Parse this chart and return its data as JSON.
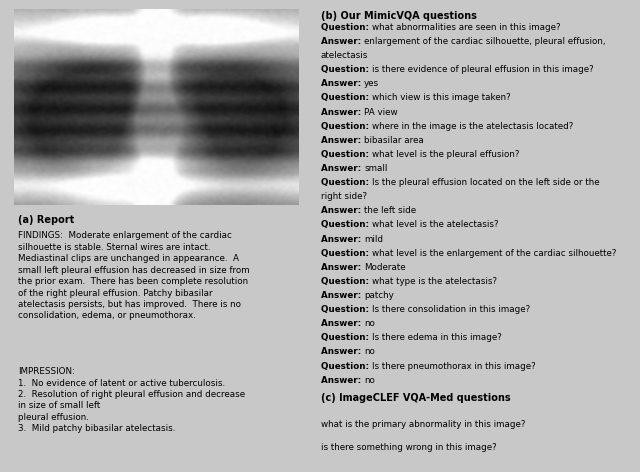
{
  "fig_width": 6.4,
  "fig_height": 4.72,
  "bg_color": "#c8c8c8",
  "left_panel_bg": "#d0d0d0",
  "right_top_bg": "#c8d8b0",
  "right_bottom_bg": "#c8d4e8",
  "border_color": "#7090b0",
  "section_a_label": "(a) Report",
  "findings_text": "FINDINGS:  Moderate enlargement of the cardiac\nsilhouette is stable. Sternal wires are intact.\nMediastinal clips are unchanged in appearance.  A\nsmall left pleural effusion has decreased in size from\nthe prior exam.  There has been complete resolution\nof the right pleural effusion. Patchy bibasilar\natelectasis persists, but has improved.  There is no\nconsolidation, edema, or pneumothorax.",
  "impression_text": "IMPRESSION:\n1.  No evidence of latent or active tuberculosis.\n2.  Resolution of right pleural effusion and decrease\nin size of small left\npleural effusion.\n3.  Mild patchy bibasilar atelectasis.",
  "section_b_label": "(b) Our MimicVQA questions",
  "vqa_lines": [
    {
      "bold": "Question: ",
      "regular": "what abnormalities are seen in this image?"
    },
    {
      "bold": "Answer: ",
      "regular": "enlargement of the cardiac silhouette, pleural effusion,"
    },
    {
      "bold": "",
      "regular": "atelectasis"
    },
    {
      "bold": "Question: ",
      "regular": "is there evidence of pleural effusion in this image?"
    },
    {
      "bold": "Answer: ",
      "regular": "yes"
    },
    {
      "bold": "Question: ",
      "regular": "which view is this image taken?"
    },
    {
      "bold": "Answer: ",
      "regular": "PA view"
    },
    {
      "bold": "Question: ",
      "regular": "where in the image is the atelectasis located?"
    },
    {
      "bold": "Answer: ",
      "regular": "bibasilar area"
    },
    {
      "bold": "Question: ",
      "regular": "what level is the pleural effusion?"
    },
    {
      "bold": "Answer: ",
      "regular": "small"
    },
    {
      "bold": "Question: ",
      "regular": "Is the pleural effusion located on the left side or the"
    },
    {
      "bold": "",
      "regular": "right side?"
    },
    {
      "bold": "Answer: ",
      "regular": "the left side"
    },
    {
      "bold": "Question: ",
      "regular": "what level is the atelectasis?"
    },
    {
      "bold": "Answer: ",
      "regular": "mild"
    },
    {
      "bold": "Question: ",
      "regular": "what level is the enlargement of the cardiac silhouette?"
    },
    {
      "bold": "Answer: ",
      "regular": "Moderate"
    },
    {
      "bold": "Question: ",
      "regular": "what type is the atelectasis?"
    },
    {
      "bold": "Answer: ",
      "regular": "patchy"
    },
    {
      "bold": "Question: ",
      "regular": "Is there consolidation in this image?"
    },
    {
      "bold": "Answer: ",
      "regular": "no"
    },
    {
      "bold": "Question: ",
      "regular": "Is there edema in this image?"
    },
    {
      "bold": "Answer: ",
      "regular": "no"
    },
    {
      "bold": "Question: ",
      "regular": "Is there pneumothorax in this image?"
    },
    {
      "bold": "Answer: ",
      "regular": "no"
    }
  ],
  "section_c_label": "(c) ImageCLEF VQA-Med questions",
  "clef_questions": [
    "what is the primary abnormality in this image?",
    "is there something wrong in this image?"
  ],
  "font_size_main": 7.0,
  "font_size_text": 6.8
}
